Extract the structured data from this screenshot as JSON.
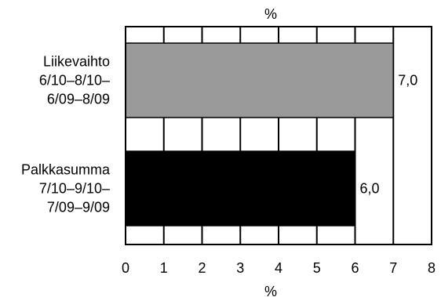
{
  "chart_data": {
    "type": "bar",
    "orientation": "horizontal",
    "top_axis_label": "%",
    "xlabel": "%",
    "xlim": [
      0,
      8
    ],
    "x_ticks": [
      "0",
      "1",
      "2",
      "3",
      "4",
      "5",
      "6",
      "7",
      "8"
    ],
    "grid": true,
    "categories": [
      [
        "Liikevaihto",
        "6/10–8/10–",
        "6/09–8/09"
      ],
      [
        "Palkkasumma",
        "7/10–9/10–",
        "7/09–9/09"
      ]
    ],
    "values": [
      7.0,
      6.0
    ],
    "value_labels": [
      "7,0",
      "6,0"
    ],
    "colors": [
      "#9a9a9a",
      "#000000"
    ]
  }
}
